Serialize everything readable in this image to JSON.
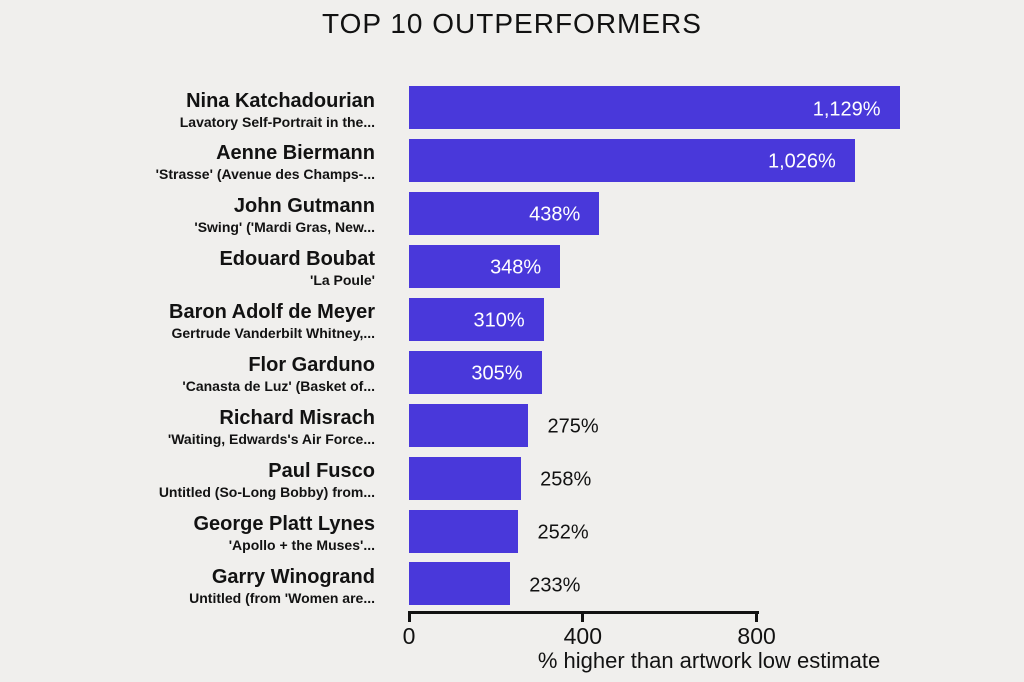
{
  "title": "TOP 10 OUTPERFORMERS",
  "x_axis": {
    "label": "% higher than artwork low estimate"
  },
  "colors": {
    "bar": "#4938da",
    "background": "#f0efed",
    "text": "#121212",
    "value_inside": "#ffffff"
  },
  "chart_data": {
    "type": "bar",
    "orientation": "horizontal",
    "title": "TOP 10 OUTPERFORMERS",
    "xlabel": "% higher than artwork low estimate",
    "xlim": [
      0,
      1280
    ],
    "xticks": [
      0,
      400,
      800
    ],
    "grid": false,
    "legend": false,
    "bars": [
      {
        "artist": "Nina Katchadourian",
        "work": "Lavatory Self-Portrait in the...",
        "value": 1129,
        "label": "1,129%",
        "label_position": "inside"
      },
      {
        "artist": "Aenne Biermann",
        "work": "'Strasse' (Avenue des Champs-...",
        "value": 1026,
        "label": "1,026%",
        "label_position": "inside"
      },
      {
        "artist": "John Gutmann",
        "work": "'Swing' ('Mardi Gras, New...",
        "value": 438,
        "label": "438%",
        "label_position": "inside"
      },
      {
        "artist": "Edouard Boubat",
        "work": "'La Poule'",
        "value": 348,
        "label": "348%",
        "label_position": "inside"
      },
      {
        "artist": "Baron Adolf de Meyer",
        "work": "Gertrude Vanderbilt Whitney,...",
        "value": 310,
        "label": "310%",
        "label_position": "inside"
      },
      {
        "artist": "Flor Garduno",
        "work": "'Canasta de Luz' (Basket of...",
        "value": 305,
        "label": "305%",
        "label_position": "inside"
      },
      {
        "artist": "Richard Misrach",
        "work": "'Waiting, Edwards's Air Force...",
        "value": 275,
        "label": "275%",
        "label_position": "outside"
      },
      {
        "artist": "Paul Fusco",
        "work": "Untitled (So-Long Bobby) from...",
        "value": 258,
        "label": "258%",
        "label_position": "outside"
      },
      {
        "artist": "George Platt Lynes",
        "work": "'Apollo + the Muses'...",
        "value": 252,
        "label": "252%",
        "label_position": "outside"
      },
      {
        "artist": "Garry Winogrand",
        "work": "Untitled (from 'Women are...",
        "value": 233,
        "label": "233%",
        "label_position": "outside"
      }
    ]
  }
}
